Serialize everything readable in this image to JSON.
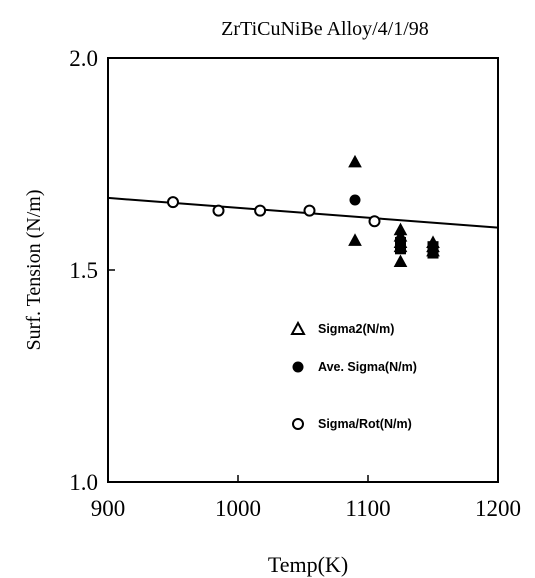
{
  "chart_data": {
    "type": "scatter",
    "title": "ZrTiCuNiBe Alloy/4/1/98",
    "xlabel": "Temp(K)",
    "ylabel": "Surf. Tension (N/m)",
    "xlim": [
      900,
      1200
    ],
    "ylim": [
      1.0,
      2.0
    ],
    "x_ticks": [
      900,
      1000,
      1100,
      1200
    ],
    "x_tick_labels": [
      "900",
      "1000",
      "1100",
      "1200"
    ],
    "y_ticks": [
      1.0,
      1.5,
      2.0
    ],
    "y_tick_labels": [
      "1.0",
      "1.5",
      "2.0"
    ],
    "grid": false,
    "legend_position": "bottom-right inside plot",
    "series": [
      {
        "name": "Sigma2(N/m)",
        "marker": "filled-triangle",
        "points": [
          {
            "x": 1090,
            "y": 1.755
          },
          {
            "x": 1090,
            "y": 1.57
          },
          {
            "x": 1125,
            "y": 1.595
          },
          {
            "x": 1125,
            "y": 1.58
          },
          {
            "x": 1125,
            "y": 1.565
          },
          {
            "x": 1125,
            "y": 1.555
          },
          {
            "x": 1125,
            "y": 1.52
          },
          {
            "x": 1150,
            "y": 1.565
          },
          {
            "x": 1150,
            "y": 1.555
          },
          {
            "x": 1150,
            "y": 1.545
          }
        ]
      },
      {
        "name": "Ave. Sigma(N/m)",
        "marker": "filled-circle",
        "points": [
          {
            "x": 1090,
            "y": 1.665
          }
        ]
      },
      {
        "name": "Sigma/Rot(N/m)",
        "marker": "open-circle",
        "points": [
          {
            "x": 950,
            "y": 1.66
          },
          {
            "x": 985,
            "y": 1.64
          },
          {
            "x": 1017,
            "y": 1.64
          },
          {
            "x": 1055,
            "y": 1.64
          },
          {
            "x": 1105,
            "y": 1.615
          }
        ]
      },
      {
        "name": "",
        "marker": "square",
        "points": [
          {
            "x": 1125,
            "y": 1.565
          },
          {
            "x": 1125,
            "y": 1.55
          },
          {
            "x": 1150,
            "y": 1.555
          },
          {
            "x": 1150,
            "y": 1.54
          }
        ]
      }
    ],
    "fit_line": {
      "x": [
        900,
        1200
      ],
      "y": [
        1.67,
        1.6
      ]
    },
    "colors": {
      "ink": "#000000",
      "background": "#ffffff"
    }
  }
}
